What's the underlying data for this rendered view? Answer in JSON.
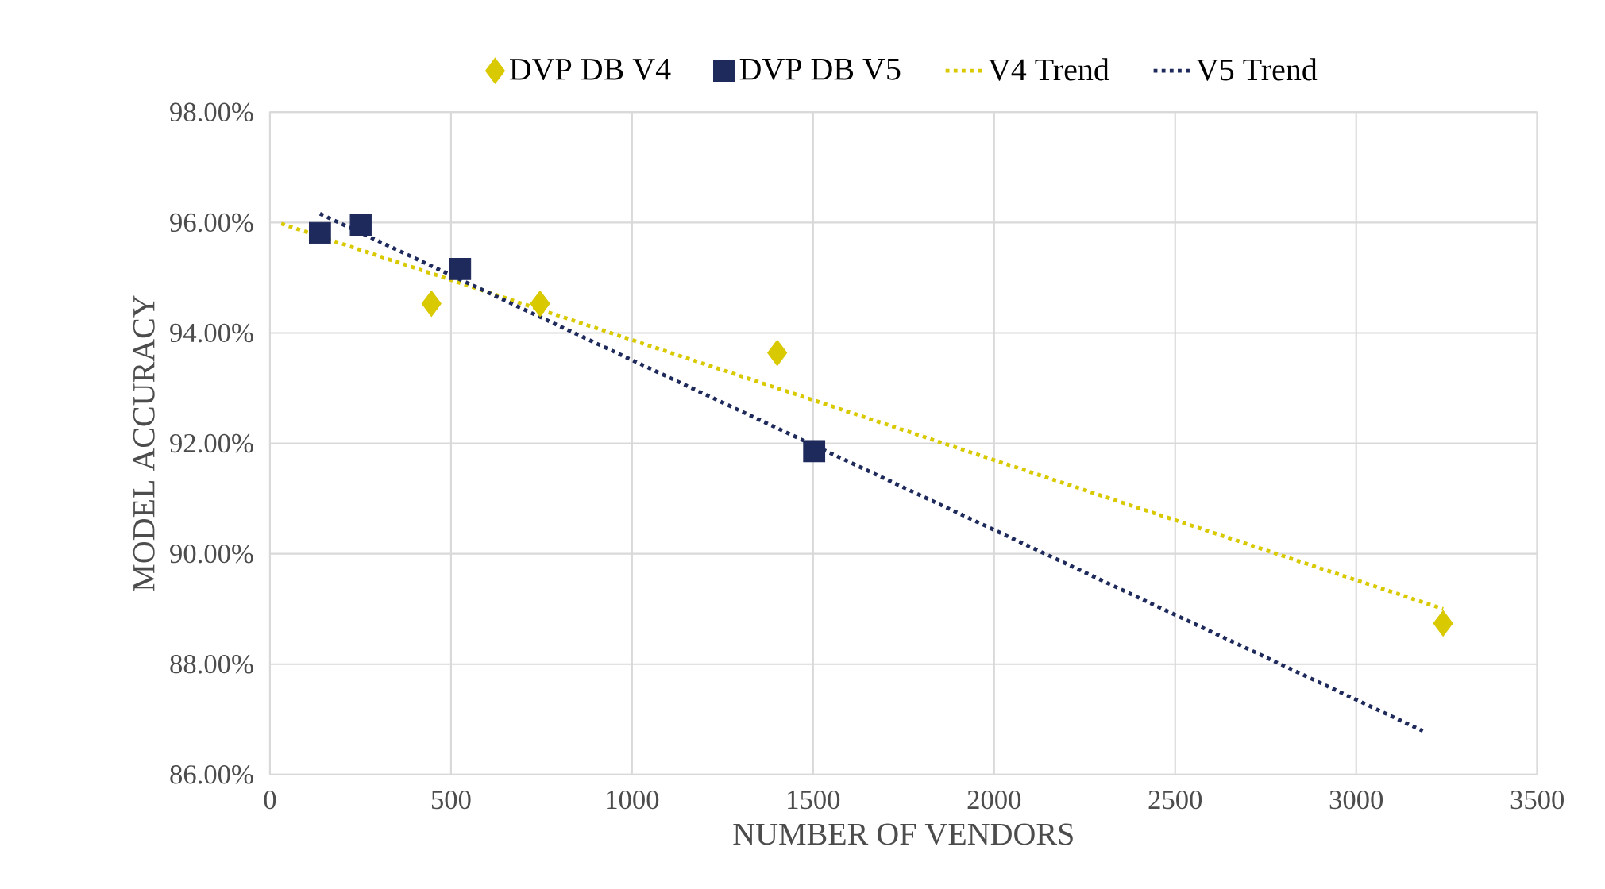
{
  "chart_data": {
    "type": "scatter",
    "xlabel": "NUMBER OF VENDORS",
    "ylabel": "MODEL ACCURACY",
    "xlim": [
      0,
      3500
    ],
    "xticks": [
      0,
      500,
      1000,
      1500,
      2000,
      2500,
      3000,
      3500
    ],
    "ylim": [
      86,
      98
    ],
    "yticks": [
      {
        "value": 86,
        "label": "86.00%"
      },
      {
        "value": 88,
        "label": "88.00%"
      },
      {
        "value": 90,
        "label": "90.00%"
      },
      {
        "value": 92,
        "label": "92.00%"
      },
      {
        "value": 94,
        "label": "94.00%"
      },
      {
        "value": 96,
        "label": "96.00%"
      },
      {
        "value": 98,
        "label": "98.00%"
      }
    ],
    "grid": true,
    "legend": "top",
    "series": [
      {
        "name": "DVP DB V4",
        "marker": "diamond",
        "color": "#d9c900",
        "x": [
          446,
          746,
          1401,
          3240
        ],
        "values": [
          94.53,
          94.53,
          93.64,
          88.74
        ]
      },
      {
        "name": "DVP DB V5",
        "marker": "square",
        "color": "#1f2a5c",
        "x": [
          138,
          251,
          525,
          1503
        ],
        "values": [
          95.81,
          95.96,
          95.16,
          91.86
        ]
      },
      {
        "name": "V4 Trend",
        "type": "line",
        "line_style": "dotted",
        "color": "#d9c900",
        "x": [
          31,
          3240
        ],
        "values": [
          95.98,
          89.0
        ]
      },
      {
        "name": "V5 Trend",
        "type": "line",
        "line_style": "dotted",
        "color": "#1f2a5c",
        "x": [
          138,
          3184
        ],
        "values": [
          96.16,
          86.79
        ]
      }
    ]
  }
}
